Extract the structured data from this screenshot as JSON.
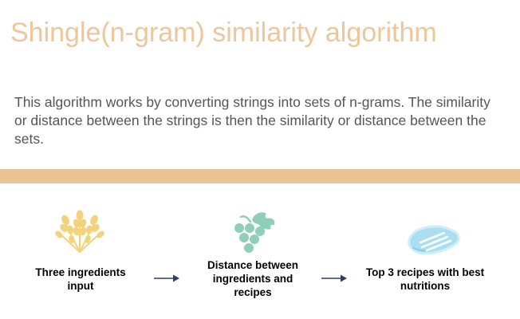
{
  "title": "Shingle(n-gram) similarity algorithm",
  "description": "This algorithm works by converting strings into sets of n-grams. The similarity or distance between the strings is then the similarity or distance between the sets.",
  "colors": {
    "title": "#ecc79b",
    "band": "#e9c394",
    "wheat": "#f2d37c",
    "grape": "#8fcfb8",
    "plate": "#a9dff0"
  },
  "steps": [
    {
      "icon": "wheat-icon",
      "label": "Three ingredients input"
    },
    {
      "icon": "grapes-icon",
      "label": "Distance between ingredients and recipes"
    },
    {
      "icon": "steak-icon",
      "label": "Top 3 recipes with best nutritions"
    }
  ]
}
